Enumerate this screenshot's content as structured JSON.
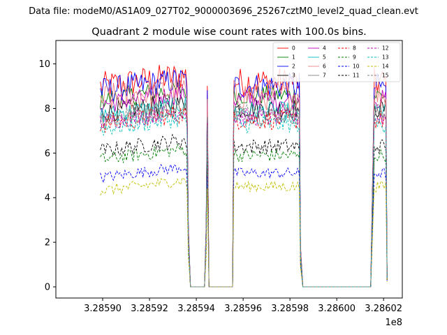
{
  "figure": {
    "suptitle": "Data file: modeM0/AS1A09_027T02_9000003696_25267cztM0_level2_quad_clean.evt"
  },
  "chart_data": {
    "type": "line",
    "title": "Quadrant 2 module wise count rates with 100.0s bins.",
    "xlabel": "",
    "ylabel": "",
    "x_offset_label": "1e8",
    "xlim": [
      3.28588,
      3.286028
    ],
    "ylim": [
      -0.5,
      11.05
    ],
    "x_ticks": [
      3.2859,
      3.28592,
      3.28594,
      3.28596,
      3.28598,
      3.286,
      3.28602
    ],
    "x_tick_labels": [
      "3.28590",
      "3.28592",
      "3.28594",
      "3.28596",
      "3.28598",
      "3.28600",
      "3.28602"
    ],
    "y_ticks": [
      0,
      2,
      4,
      6,
      8,
      10
    ],
    "y_tick_labels": [
      "0",
      "2",
      "4",
      "6",
      "8",
      "10"
    ],
    "grid": false,
    "legend_position": "top-right",
    "segments": [
      [
        3.285899,
        3.285936
      ],
      [
        3.285956,
        3.285984
      ],
      [
        3.286016,
        3.286021
      ]
    ],
    "x_gaps": [
      {
        "x": [
          3.285936,
          3.2859366,
          3.2859375,
          3.2859435,
          3.2859442,
          3.2859447,
          3.2859454,
          3.2859555,
          3.285956
        ],
        "f": [
          1,
          0.3,
          0,
          0,
          0.3,
          1,
          0,
          0,
          1
        ]
      },
      {
        "x": [
          3.285984,
          3.2859845,
          3.2859855,
          3.2860145,
          3.286016
        ],
        "f": [
          1,
          0.2,
          0,
          0,
          1
        ]
      },
      {
        "x": [
          3.286021,
          3.2860215
        ],
        "f": [
          1,
          0.05
        ]
      }
    ],
    "series": [
      {
        "name": "0",
        "level": 9.2,
        "amp": 0.65,
        "color": "#ff0000",
        "dash": false
      },
      {
        "name": "1",
        "level": 8.6,
        "amp": 0.45,
        "color": "#008000",
        "dash": false
      },
      {
        "name": "2",
        "level": 9.0,
        "amp": 0.6,
        "color": "#0000ff",
        "dash": false
      },
      {
        "name": "3",
        "level": 8.0,
        "amp": 0.45,
        "color": "#000000",
        "dash": false
      },
      {
        "name": "4",
        "level": 8.4,
        "amp": 0.45,
        "color": "#bf00bf",
        "dash": false
      },
      {
        "name": "5",
        "level": 7.9,
        "amp": 0.4,
        "color": "#00bfbf",
        "dash": false
      },
      {
        "name": "6",
        "level": 8.6,
        "amp": 0.7,
        "color": "#f08080",
        "dash": false
      },
      {
        "name": "7",
        "level": 7.7,
        "amp": 0.4,
        "color": "#808080",
        "dash": false
      },
      {
        "name": "8",
        "level": 7.5,
        "amp": 0.45,
        "color": "#ff0000",
        "dash": true
      },
      {
        "name": "9",
        "level": 5.9,
        "amp": 0.3,
        "color": "#008000",
        "dash": true
      },
      {
        "name": "10",
        "level": 5.1,
        "amp": 0.25,
        "color": "#0000ff",
        "dash": true
      },
      {
        "name": "11",
        "level": 6.3,
        "amp": 0.35,
        "color": "#000000",
        "dash": true
      },
      {
        "name": "12",
        "level": 7.6,
        "amp": 0.4,
        "color": "#bf00bf",
        "dash": true
      },
      {
        "name": "13",
        "level": 7.3,
        "amp": 0.4,
        "color": "#00bfbf",
        "dash": true
      },
      {
        "name": "14",
        "level": 4.5,
        "amp": 0.25,
        "color": "#bfbf00",
        "dash": true
      },
      {
        "name": "15",
        "level": 7.8,
        "amp": 0.4,
        "color": "#808080",
        "dash": true
      }
    ]
  }
}
